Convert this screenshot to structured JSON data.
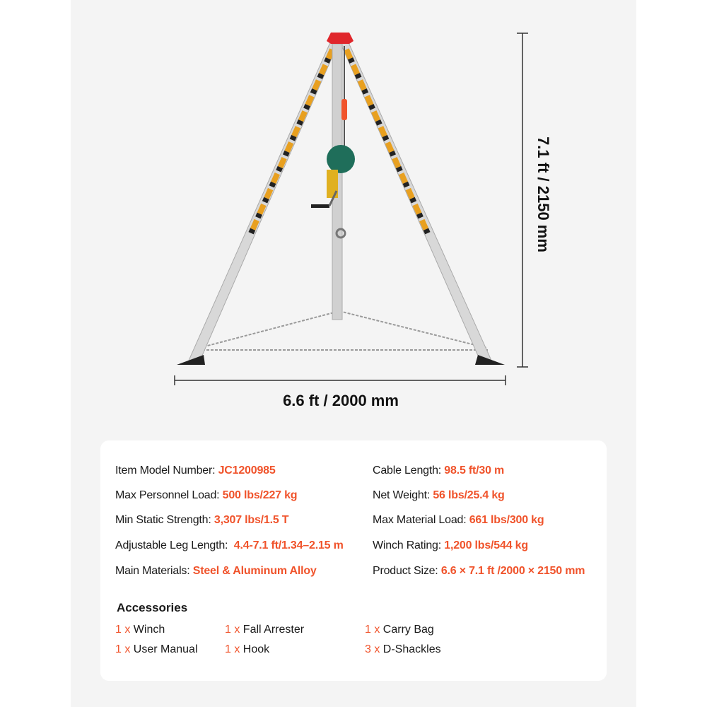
{
  "dimensions": {
    "width_label": "6.6 ft / 2000 mm",
    "height_label": "7.1 ft / 2150 mm"
  },
  "specs": {
    "left": [
      {
        "label": "Item Model Number:",
        "value": "JC1200985"
      },
      {
        "label": "Max Personnel Load:",
        "value": "500 lbs/227 kg"
      },
      {
        "label": "Min Static Strength:",
        "value": "3,307 lbs/1.5 T"
      },
      {
        "label": "Adjustable Leg Length:",
        "value": "4.4-7.1 ft/1.34–2.15 m"
      },
      {
        "label": "Main Materials:",
        "value": "Steel & Aluminum Alloy"
      }
    ],
    "right": [
      {
        "label": "Cable Length:",
        "value": "98.5 ft/30 m"
      },
      {
        "label": "Net Weight:",
        "value": "56 lbs/25.4 kg"
      },
      {
        "label": "Max Material Load:",
        "value": "661 lbs/300 kg"
      },
      {
        "label": "Winch Rating:",
        "value": "1,200 lbs/544 kg"
      },
      {
        "label": "Product Size:",
        "value": "6.6 × 7.1 ft /2000 × 2150 mm"
      }
    ]
  },
  "accessories": {
    "title": "Accessories",
    "items": [
      {
        "qty": "1 x",
        "name": "Winch"
      },
      {
        "qty": "1 x",
        "name": "Fall Arrester"
      },
      {
        "qty": "1 x",
        "name": "Carry Bag"
      },
      {
        "qty": "1 x",
        "name": "User Manual"
      },
      {
        "qty": "1 x",
        "name": "Hook"
      },
      {
        "qty": "3 x",
        "name": "D-Shackles"
      }
    ]
  },
  "colors": {
    "accent": "#f0532b",
    "panel": "#f4f4f4",
    "tripod_head": "#e0262b",
    "winch": "#1f6e5a"
  }
}
